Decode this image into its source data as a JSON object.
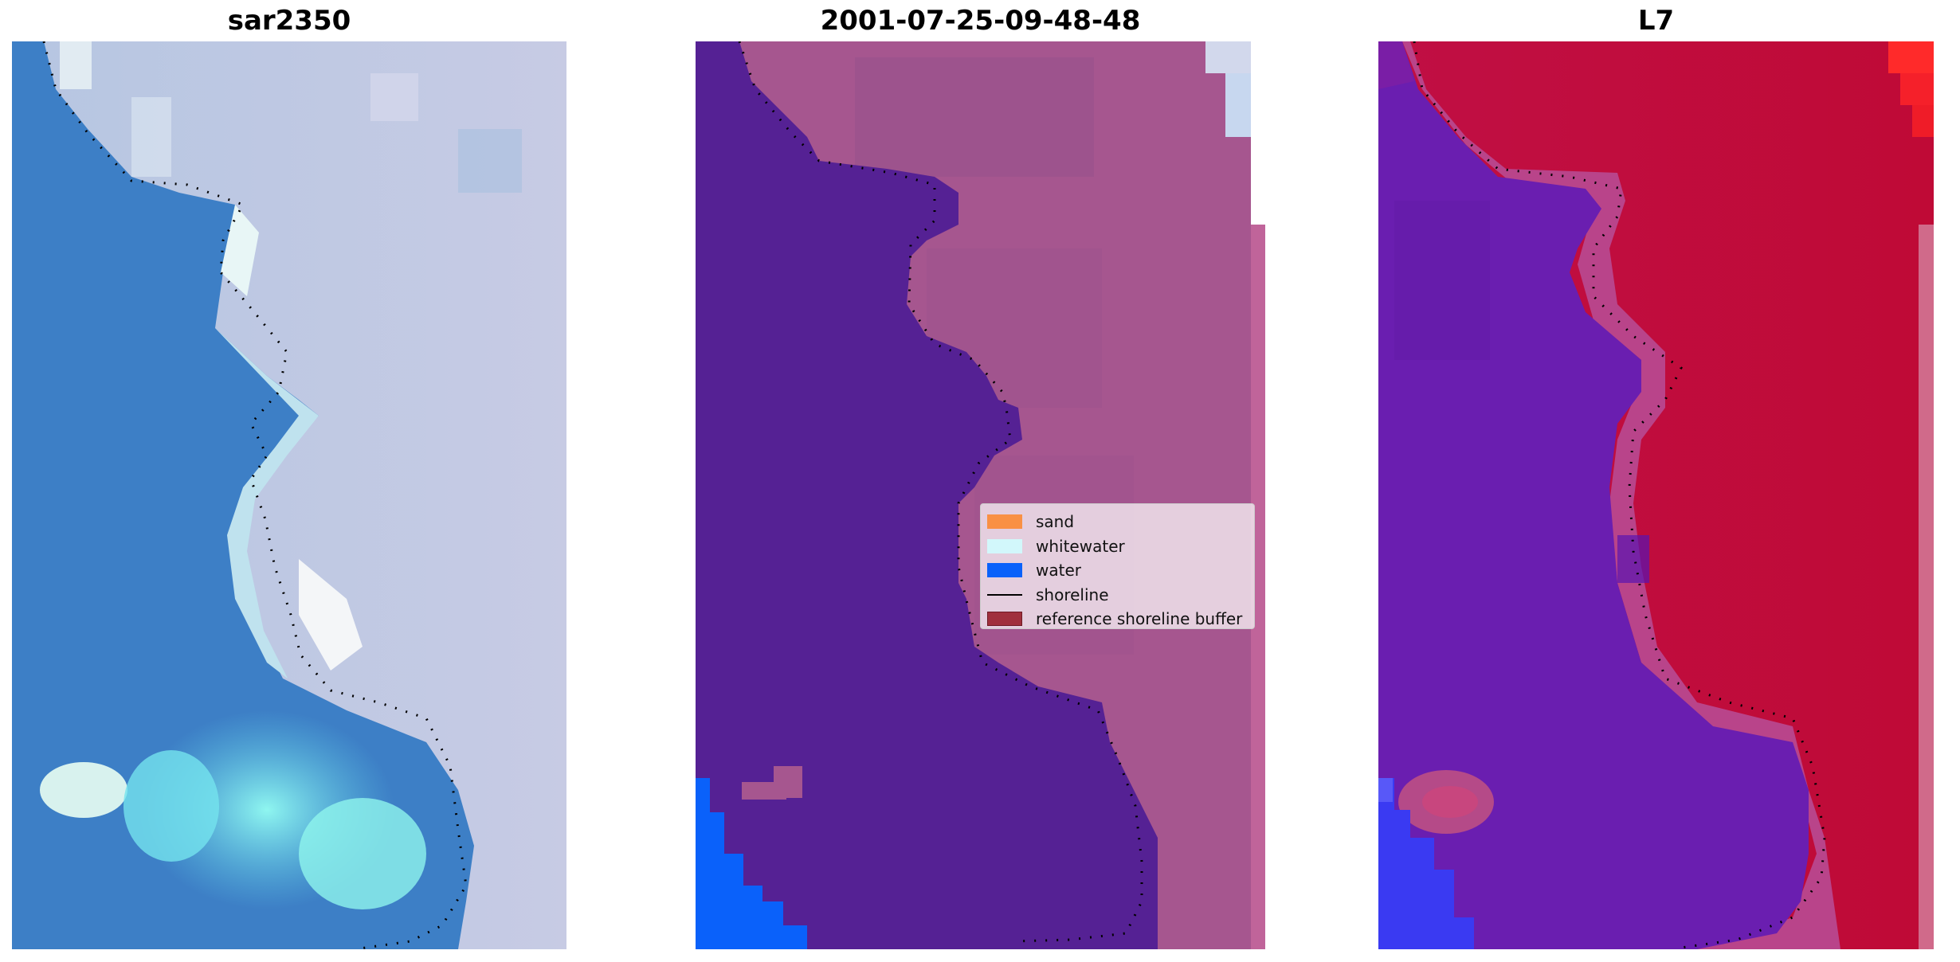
{
  "panels": [
    {
      "title": "sar2350"
    },
    {
      "title": "2001-07-25-09-48-48"
    },
    {
      "title": "L7"
    }
  ],
  "legend": {
    "items": [
      {
        "label": "sand",
        "color": "#f99044",
        "kind": "patch"
      },
      {
        "label": "whitewater",
        "color": "#d2f7fb",
        "kind": "patch"
      },
      {
        "label": "water",
        "color": "#0a61fa",
        "kind": "patch"
      },
      {
        "label": "shoreline",
        "color": "#000000",
        "kind": "line"
      },
      {
        "label": "reference shoreline buffer",
        "color": "#a0303d",
        "kind": "patch"
      }
    ]
  },
  "colors": {
    "rgb_water": "#3c7ec4",
    "rgb_land": "#c9d0e6",
    "rgb_whitewater": "#7ef0f0",
    "class_water": "#552194",
    "class_land": "#a5558f",
    "class_blue": "#0a61fa",
    "ndwi_water": "#6a1fb2",
    "ndwi_land": "#c00c3c"
  }
}
